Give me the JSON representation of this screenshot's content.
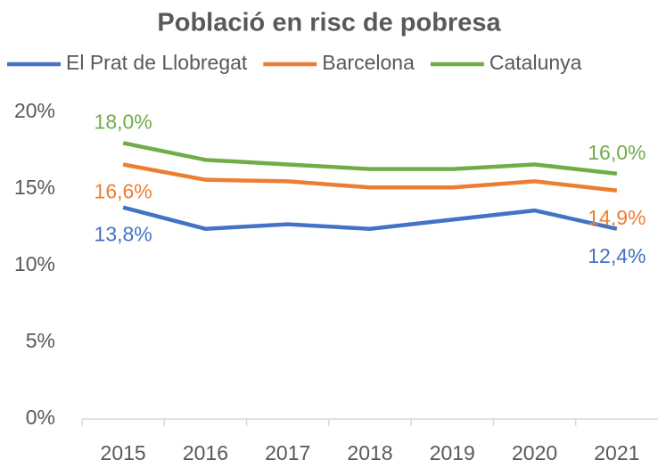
{
  "chart_data": {
    "type": "line",
    "title": "Població en risc de pobresa",
    "categories": [
      "2015",
      "2016",
      "2017",
      "2018",
      "2019",
      "2020",
      "2021"
    ],
    "series": [
      {
        "name": "El Prat de Llobregat",
        "color": "#4472c4",
        "values": [
          13.8,
          12.4,
          12.7,
          12.4,
          13.0,
          13.6,
          12.4
        ],
        "value_labels": [
          "13,8%",
          null,
          null,
          null,
          null,
          null,
          "12,4%"
        ]
      },
      {
        "name": "Barcelona",
        "color": "#ed7d31",
        "values": [
          16.6,
          15.6,
          15.5,
          15.1,
          15.1,
          15.5,
          14.9
        ],
        "value_labels": [
          "16,6%",
          null,
          null,
          null,
          null,
          null,
          "14,9%"
        ]
      },
      {
        "name": "Catalunya",
        "color": "#70ad47",
        "values": [
          18.0,
          16.9,
          16.6,
          16.3,
          16.3,
          16.6,
          16.0
        ],
        "value_labels": [
          "18,0%",
          null,
          null,
          null,
          null,
          null,
          "16,0%"
        ]
      }
    ],
    "ylim": [
      0,
      20
    ],
    "yticks": [
      {
        "value": 0,
        "label": "0%"
      },
      {
        "value": 5,
        "label": "5%"
      },
      {
        "value": 10,
        "label": "10%"
      },
      {
        "value": 15,
        "label": "15%"
      },
      {
        "value": 20,
        "label": "20%"
      }
    ],
    "grid": false,
    "legend": "top"
  }
}
